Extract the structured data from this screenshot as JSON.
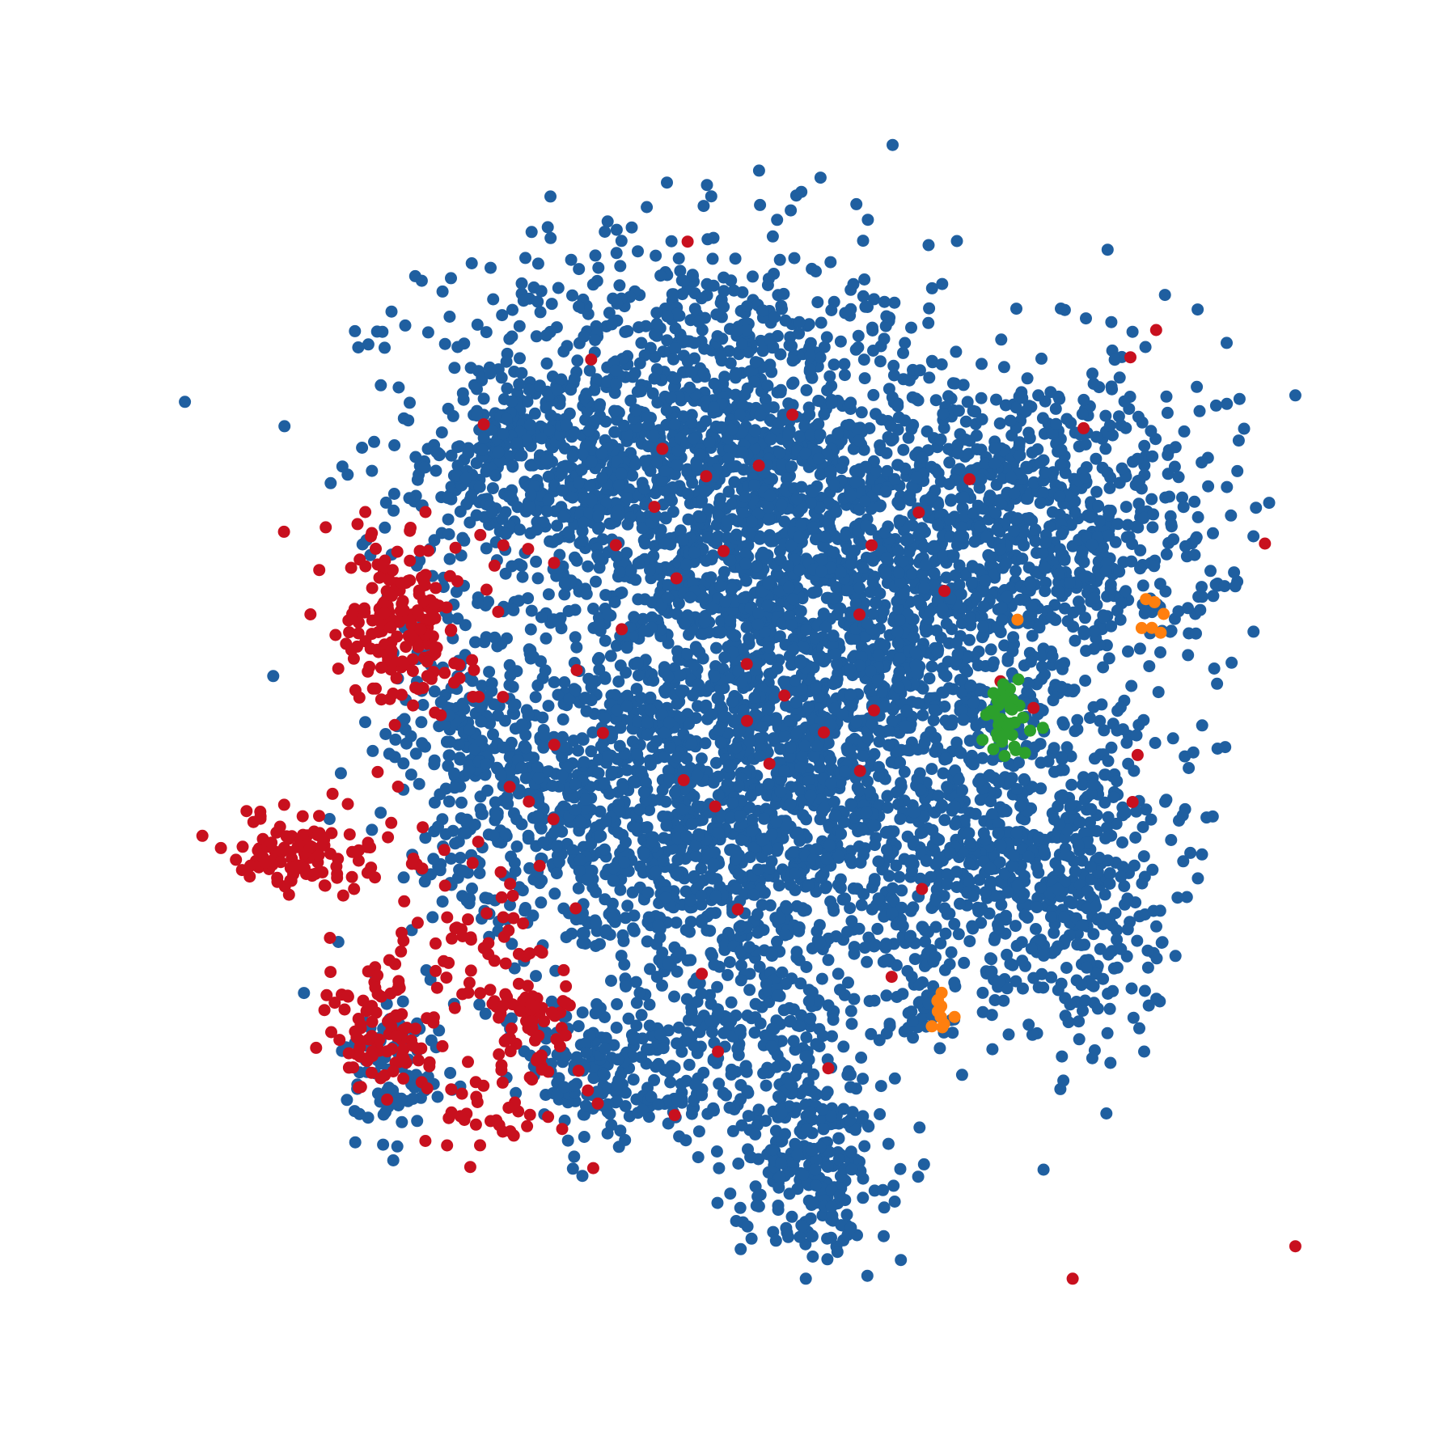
{
  "chart_data": {
    "type": "scatter",
    "title": "",
    "xlabel": "",
    "ylabel": "",
    "axes_visible": false,
    "grid": false,
    "legend": "none",
    "xlim": [
      0,
      100
    ],
    "ylim": [
      0,
      100
    ],
    "series": [
      {
        "color": "#1f5fa0",
        "clusters": [
          {
            "cx": 45,
            "cy": 72,
            "sx": 11,
            "sy": 9,
            "n": 1500
          },
          {
            "cx": 58,
            "cy": 55,
            "sx": 12,
            "sy": 10,
            "n": 1700
          },
          {
            "cx": 52,
            "cy": 38,
            "sx": 11,
            "sy": 8,
            "n": 1100
          },
          {
            "cx": 76,
            "cy": 66,
            "sx": 8,
            "sy": 7,
            "n": 700
          },
          {
            "cx": 79,
            "cy": 36,
            "sx": 4,
            "sy": 7,
            "n": 350
          },
          {
            "cx": 35,
            "cy": 42,
            "sx": 7,
            "sy": 6,
            "n": 350
          },
          {
            "cx": 26,
            "cy": 48,
            "sx": 3,
            "sy": 6,
            "n": 160
          },
          {
            "cx": 32,
            "cy": 71,
            "sx": 4,
            "sy": 4,
            "n": 150
          },
          {
            "cx": 40,
            "cy": 19,
            "sx": 5,
            "sy": 3,
            "n": 210
          },
          {
            "cx": 56,
            "cy": 12,
            "sx": 3,
            "sy": 4,
            "n": 260
          },
          {
            "cx": 52,
            "cy": 22,
            "sx": 4,
            "sy": 3,
            "n": 110
          },
          {
            "cx": 20,
            "cy": 19,
            "sx": 2,
            "sy": 3,
            "n": 90
          },
          {
            "cx": 72,
            "cy": 38,
            "sx": 3,
            "sy": 3,
            "n": 120
          },
          {
            "cx": 66,
            "cy": 26,
            "sx": 2,
            "sy": 3,
            "n": 40
          }
        ]
      },
      {
        "color": "#c8101e",
        "clusters": [
          {
            "cx": 21,
            "cy": 58,
            "sx": 2.5,
            "sy": 4,
            "n": 180
          },
          {
            "cx": 12,
            "cy": 38,
            "sx": 3,
            "sy": 1.6,
            "n": 110
          },
          {
            "cx": 19,
            "cy": 23,
            "sx": 2,
            "sy": 3,
            "n": 80
          },
          {
            "cx": 26,
            "cy": 30,
            "sx": 5,
            "sy": 5,
            "n": 80
          },
          {
            "cx": 32,
            "cy": 24,
            "sx": 2.5,
            "sy": 2.5,
            "n": 60
          },
          {
            "cx": 29,
            "cy": 16,
            "sx": 4,
            "sy": 2,
            "n": 35
          },
          {
            "cx": 55,
            "cy": 55,
            "sx": 20,
            "sy": 20,
            "n": 60
          }
        ]
      },
      {
        "color": "#2ca02c",
        "clusters": [
          {
            "cx": 73,
            "cy": 49,
            "sx": 1.2,
            "sy": 1.6,
            "n": 45
          }
        ]
      },
      {
        "color": "#ff7f0e",
        "clusters": [
          {
            "cx": 67.5,
            "cy": 24.5,
            "sx": 0.7,
            "sy": 0.9,
            "n": 12
          },
          {
            "cx": 85.5,
            "cy": 58,
            "sx": 0.8,
            "sy": 0.8,
            "n": 6
          },
          {
            "cx": 74,
            "cy": 58,
            "sx": 0.2,
            "sy": 0.2,
            "n": 1
          }
        ]
      }
    ]
  }
}
